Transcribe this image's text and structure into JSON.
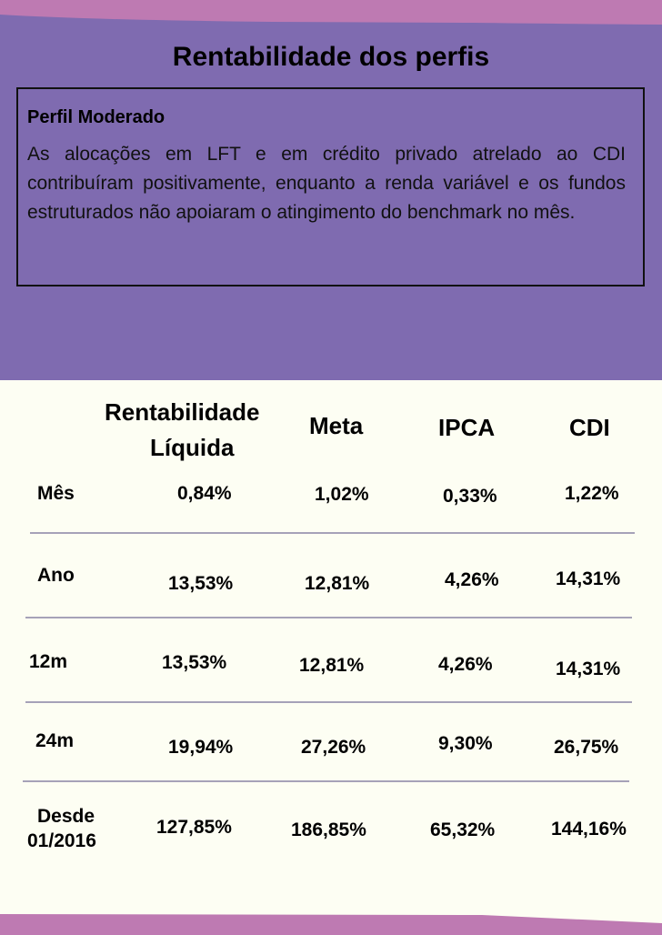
{
  "title": "Rentabilidade dos perfis",
  "profile": {
    "name": "Perfil Moderado",
    "text": "As alocações em LFT e em crédito privado atrelado ao CDI contribuíram positivamente, enquanto a renda variável e os fundos estruturados não apoiaram o atingimento do benchmark no mês."
  },
  "colors": {
    "header_bg": "#7f6bb0",
    "accent": "#be7ab2",
    "body_bg": "#fdfef3"
  },
  "table": {
    "headers": [
      "Rentabilidade",
      "Líquida",
      "Meta",
      "IPCA",
      "CDI"
    ],
    "rows": [
      {
        "label": "Mês",
        "label2": "",
        "values": [
          "0,84%",
          "1,02%",
          "0,33%",
          "1,22%"
        ]
      },
      {
        "label": "Ano",
        "label2": "",
        "values": [
          "13,53%",
          "12,81%",
          "4,26%",
          "14,31%"
        ]
      },
      {
        "label": "12m",
        "label2": "",
        "values": [
          "13,53%",
          "12,81%",
          "4,26%",
          "14,31%"
        ]
      },
      {
        "label": "24m",
        "label2": "",
        "values": [
          "19,94%",
          "27,26%",
          "9,30%",
          "26,75%"
        ]
      },
      {
        "label": "Desde",
        "label2": "01/2016",
        "values": [
          "127,85%",
          "186,85%",
          "65,32%",
          "144,16%"
        ]
      }
    ]
  }
}
